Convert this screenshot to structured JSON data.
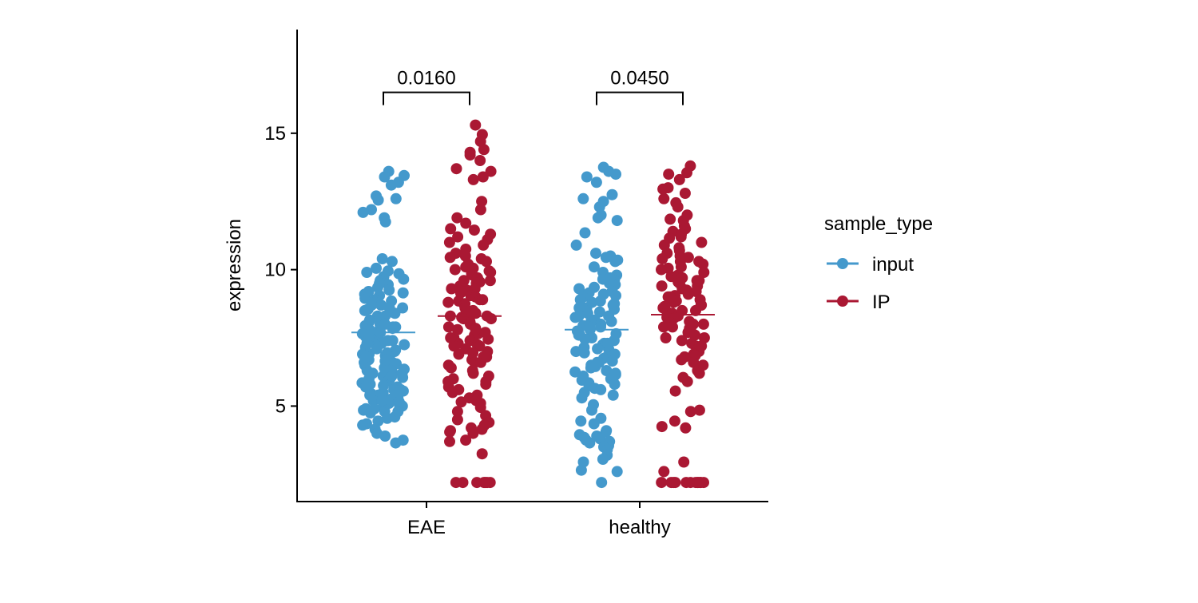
{
  "chart_data": {
    "type": "scatter",
    "subtype": "jitter-strip",
    "title": "",
    "xlabel": "",
    "ylabel": "expression",
    "ylim": [
      1.5,
      18.8
    ],
    "y_ticks": [
      5,
      10,
      15
    ],
    "categories": [
      "EAE",
      "healthy"
    ],
    "grid": false,
    "legend": {
      "title": "sample_type",
      "position": "right",
      "entries": [
        {
          "label": "input",
          "color": "#4499cc"
        },
        {
          "label": "IP",
          "color": "#aa1833"
        }
      ]
    },
    "series": [
      {
        "name": "input",
        "color": "#4499cc",
        "group_means": {
          "EAE": 7.7,
          "healthy": 7.8
        }
      },
      {
        "name": "IP",
        "color": "#aa1833",
        "group_means": {
          "EAE": 8.3,
          "healthy": 8.35
        }
      }
    ],
    "points": {
      "EAE": {
        "input": [
          13.6,
          13.45,
          13.4,
          13.1,
          13.2,
          12.7,
          12.55,
          12.6,
          12.2,
          12.1,
          11.9,
          11.75,
          10.4,
          10.3,
          10.05,
          9.95,
          9.85,
          9.75,
          9.65,
          9.6,
          9.45,
          9.35,
          9.25,
          9.15,
          9.05,
          8.95,
          8.9,
          8.85,
          8.8,
          8.7,
          8.6,
          8.55,
          8.45,
          8.4,
          8.3,
          8.25,
          8.15,
          8.1,
          8.0,
          7.95,
          7.9,
          7.85,
          7.8,
          7.75,
          7.65,
          7.6,
          7.55,
          7.5,
          7.45,
          7.4,
          7.3,
          7.25,
          7.2,
          7.15,
          7.05,
          7.0,
          6.95,
          6.9,
          6.85,
          6.8,
          6.7,
          6.65,
          6.6,
          6.55,
          6.5,
          6.4,
          6.35,
          6.3,
          6.25,
          6.2,
          6.1,
          6.05,
          6.0,
          5.95,
          5.9,
          5.85,
          5.8,
          5.75,
          5.7,
          5.6,
          5.55,
          5.5,
          5.45,
          5.4,
          5.35,
          5.3,
          5.25,
          5.2,
          5.15,
          5.1,
          5.05,
          5.0,
          4.95,
          4.9,
          4.85,
          4.8,
          4.75,
          4.6,
          4.55,
          4.45,
          4.35,
          4.3,
          4.15,
          4.0,
          3.9,
          3.75,
          3.65,
          8.5,
          8.2,
          7.9,
          7.3,
          6.9,
          6.6,
          6.3,
          6.0,
          5.7,
          5.4,
          5.1,
          4.8,
          9.9,
          9.5,
          9.1,
          8.7,
          8.3,
          7.7,
          7.1,
          6.7,
          6.2,
          5.6,
          5.2,
          4.9,
          9.2,
          8.6,
          8.0,
          7.4,
          6.8,
          6.1,
          5.5
        ],
        "IP": [
          15.3,
          14.95,
          14.7,
          14.4,
          14.3,
          14.2,
          14.0,
          13.7,
          13.6,
          13.4,
          13.3,
          12.5,
          12.2,
          11.9,
          11.7,
          11.5,
          11.45,
          11.3,
          11.2,
          11.1,
          11.0,
          10.9,
          10.75,
          10.6,
          10.45,
          10.4,
          10.3,
          10.2,
          10.1,
          10.05,
          10.0,
          9.95,
          9.85,
          9.8,
          9.7,
          9.6,
          9.55,
          9.5,
          9.4,
          9.3,
          9.25,
          9.15,
          9.05,
          9.0,
          8.9,
          8.85,
          8.75,
          8.7,
          8.6,
          8.5,
          8.45,
          8.4,
          8.3,
          8.25,
          8.2,
          8.1,
          8.05,
          8.0,
          7.9,
          7.85,
          7.8,
          7.7,
          7.65,
          7.6,
          7.5,
          7.45,
          7.4,
          7.3,
          7.25,
          7.2,
          7.1,
          7.0,
          6.95,
          6.9,
          6.8,
          6.7,
          6.6,
          6.5,
          6.4,
          6.3,
          6.2,
          6.1,
          6.0,
          5.9,
          5.8,
          5.7,
          5.6,
          5.5,
          5.4,
          5.3,
          5.2,
          5.15,
          5.1,
          4.95,
          4.8,
          4.65,
          4.5,
          4.4,
          4.3,
          4.2,
          4.15,
          4.1,
          4.05,
          4.0,
          3.75,
          3.7,
          3.25,
          2.2,
          2.2,
          2.2,
          2.2,
          2.2,
          2.2,
          2.2,
          9.9,
          9.3,
          8.8,
          8.3,
          7.8,
          7.2,
          6.6,
          5.9,
          10.5,
          9.6,
          8.9,
          8.2,
          7.5,
          6.8
        ]
      },
      "healthy": {
        "input": [
          13.75,
          13.6,
          13.5,
          13.4,
          13.2,
          12.75,
          12.6,
          12.5,
          12.3,
          12.0,
          11.9,
          11.8,
          11.35,
          10.9,
          10.6,
          10.5,
          10.45,
          10.35,
          10.3,
          10.1,
          9.9,
          9.8,
          9.65,
          9.6,
          9.5,
          9.45,
          9.35,
          9.3,
          9.2,
          9.15,
          9.05,
          9.0,
          8.9,
          8.85,
          8.75,
          8.7,
          8.6,
          8.55,
          8.45,
          8.4,
          8.3,
          8.25,
          8.15,
          8.1,
          8.0,
          7.95,
          7.9,
          7.8,
          7.75,
          7.65,
          7.6,
          7.5,
          7.45,
          7.4,
          7.3,
          7.25,
          7.15,
          7.1,
          7.0,
          6.95,
          6.9,
          6.8,
          6.75,
          6.65,
          6.6,
          6.5,
          6.45,
          6.4,
          6.3,
          6.25,
          6.15,
          6.1,
          6.0,
          5.95,
          5.85,
          5.8,
          5.75,
          5.65,
          5.6,
          5.5,
          5.4,
          5.3,
          5.05,
          4.85,
          4.55,
          4.45,
          4.35,
          4.1,
          4.05,
          3.95,
          3.9,
          3.85,
          3.8,
          3.75,
          3.7,
          3.65,
          3.55,
          3.5,
          3.4,
          3.2,
          3.05,
          2.95,
          2.65,
          2.6,
          2.2,
          9.1,
          8.6,
          8.1,
          7.6,
          7.1,
          6.6,
          6.1,
          9.7,
          8.8,
          7.9,
          7.0,
          6.2,
          8.3,
          7.3
        ],
        "IP": [
          13.8,
          13.55,
          13.5,
          13.3,
          13.0,
          12.95,
          12.8,
          12.6,
          12.45,
          12.3,
          12.0,
          11.85,
          11.8,
          11.6,
          11.5,
          11.4,
          11.3,
          11.2,
          11.15,
          11.0,
          10.9,
          10.8,
          10.7,
          10.6,
          10.5,
          10.45,
          10.4,
          10.3,
          10.2,
          10.1,
          10.05,
          10.0,
          9.9,
          9.8,
          9.75,
          9.7,
          9.6,
          9.55,
          9.5,
          9.4,
          9.3,
          9.25,
          9.2,
          9.1,
          9.05,
          9.0,
          8.9,
          8.85,
          8.8,
          8.7,
          8.65,
          8.6,
          8.5,
          8.45,
          8.4,
          8.3,
          8.25,
          8.2,
          8.1,
          8.05,
          8.0,
          7.9,
          7.85,
          7.8,
          7.7,
          7.6,
          7.5,
          7.4,
          7.3,
          7.2,
          7.1,
          7.0,
          6.9,
          6.85,
          6.8,
          6.7,
          6.6,
          6.5,
          6.3,
          6.2,
          6.05,
          5.9,
          5.55,
          4.85,
          4.8,
          4.45,
          4.25,
          4.2,
          2.95,
          2.6,
          2.2,
          2.2,
          2.2,
          2.2,
          2.2,
          2.2,
          2.2,
          2.2,
          2.2,
          2.2,
          2.2,
          2.2,
          9.6,
          9.0,
          8.5,
          8.0,
          7.5,
          10.3,
          9.4,
          8.7,
          7.9,
          7.2
        ]
      }
    },
    "comparisons": [
      {
        "category": "EAE",
        "label": "0.0160",
        "bracket_y": 16.5
      },
      {
        "category": "healthy",
        "label": "0.0450",
        "bracket_y": 16.5
      }
    ]
  }
}
